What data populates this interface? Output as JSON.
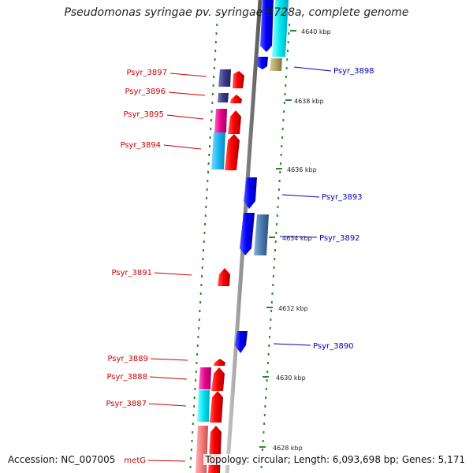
{
  "title": "Pseudomonas syringae pv. syringae B728a, complete genome",
  "footer": {
    "accession": "Accession: NC_007005",
    "summary": "Topology: circular; Length: 6,093,698 bp; Genes: 5,171"
  },
  "colors": {
    "label_left": "#cc0000",
    "label_right": "#0000bb",
    "backbone": "#8c8c8c",
    "tick": "#2a8a2a",
    "forward_cds": "#ff0000",
    "reverse_cds": "#0000ff"
  },
  "scale_labels": [
    "4640 kbp",
    "4638 kbp",
    "4636 kbp",
    "4634 kbp",
    "4632 kbp",
    "4630 kbp",
    "4628 kbp"
  ],
  "gene_labels_left": [
    "Psyr_3897",
    "Psyr_3896",
    "Psyr_3895",
    "Psyr_3894",
    "Psyr_3891",
    "Psyr_3889",
    "Psyr_3888",
    "Psyr_3887",
    "metG"
  ],
  "gene_labels_right": [
    "Psyr_3898",
    "Psyr_3893",
    "Psyr_3892",
    "Psyr_3890"
  ]
}
